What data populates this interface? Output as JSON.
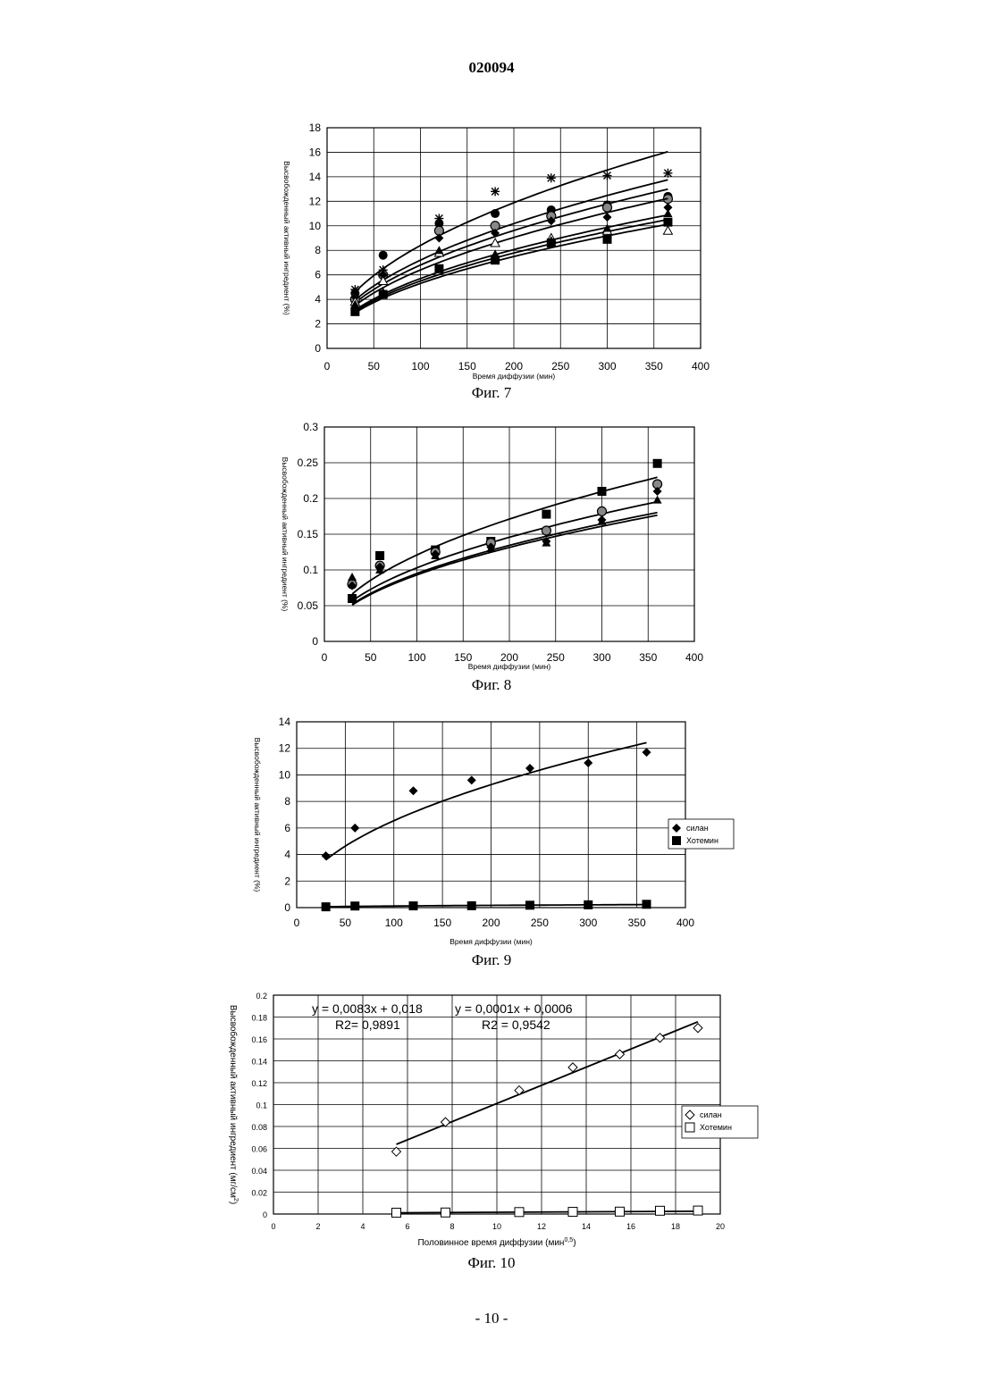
{
  "header": {
    "doc_number": "020094"
  },
  "footer": {
    "page_number": "- 10 -"
  },
  "chart_data": [
    {
      "caption": "Фиг. 7",
      "type": "scatter",
      "xlabel": "Время диффузии (мин)",
      "ylabel": "Высвобожденный активный ингредиент (%)",
      "xlim": [
        0,
        400
      ],
      "ylim": [
        0,
        18
      ],
      "xticks": [
        0,
        50,
        100,
        150,
        200,
        250,
        300,
        350,
        400
      ],
      "yticks": [
        0,
        2,
        4,
        6,
        8,
        10,
        12,
        14,
        16,
        18
      ],
      "grid": true,
      "series": [
        {
          "marker": "star",
          "x": [
            30,
            60,
            120,
            180,
            240,
            300,
            365
          ],
          "y": [
            4.8,
            6.4,
            10.6,
            12.8,
            13.9,
            14.1,
            14.3
          ],
          "fit": {
            "kind": "power",
            "a": 0.84,
            "b": 0.5
          }
        },
        {
          "marker": "circle",
          "x": [
            30,
            60,
            120,
            180,
            240,
            300,
            365
          ],
          "y": [
            4.5,
            7.6,
            10.2,
            11.0,
            11.3,
            11.7,
            12.4
          ],
          "fit": {
            "kind": "power",
            "a": 0.72,
            "b": 0.5
          }
        },
        {
          "marker": "circle-gray",
          "x": [
            30,
            60,
            120,
            180,
            240,
            300,
            365
          ],
          "y": [
            4.0,
            6.0,
            9.6,
            10.0,
            10.8,
            11.5,
            12.2
          ],
          "fit": {
            "kind": "power",
            "a": 0.68,
            "b": 0.5
          }
        },
        {
          "marker": "diamond",
          "x": [
            30,
            60,
            120,
            180,
            240,
            300,
            365
          ],
          "y": [
            4.2,
            6.0,
            9.0,
            9.4,
            10.4,
            10.7,
            11.5
          ],
          "fit": {
            "kind": "power",
            "a": 0.64,
            "b": 0.5
          }
        },
        {
          "marker": "triangle-open",
          "x": [
            30,
            60,
            120,
            180,
            240,
            300,
            365
          ],
          "y": [
            3.8,
            5.5,
            7.8,
            8.6,
            9.0,
            9.6,
            9.6
          ],
          "fit": {
            "kind": "power",
            "a": 0.55,
            "b": 0.5
          }
        },
        {
          "marker": "triangle",
          "x": [
            30,
            60,
            120,
            180,
            240,
            300,
            365
          ],
          "y": [
            3.6,
            4.6,
            8.0,
            7.7,
            8.8,
            9.8,
            11.0
          ],
          "fit": {
            "kind": "power",
            "a": 0.57,
            "b": 0.5
          }
        },
        {
          "marker": "square",
          "x": [
            30,
            60,
            120,
            180,
            240,
            300,
            365
          ],
          "y": [
            3.0,
            4.4,
            6.5,
            7.2,
            8.6,
            8.9,
            10.3
          ],
          "fit": {
            "kind": "power",
            "a": 0.53,
            "b": 0.5
          }
        }
      ]
    },
    {
      "caption": "Фиг. 8",
      "type": "scatter",
      "xlabel": "Время диффузии (мин)",
      "ylabel": "Высвобожденный активный ингредиент (%)",
      "xlim": [
        0,
        400
      ],
      "ylim": [
        0,
        0.3
      ],
      "xticks": [
        0,
        50,
        100,
        150,
        200,
        250,
        300,
        350,
        400
      ],
      "yticks": [
        0,
        0.05,
        0.1,
        0.15,
        0.2,
        0.25,
        0.3
      ],
      "ytick_labels": [
        "0",
        "0.05",
        "0.1",
        "0.15",
        "0.2",
        "0.25",
        "0.3"
      ],
      "grid": true,
      "series": [
        {
          "marker": "square",
          "x": [
            30,
            60,
            120,
            180,
            240,
            300,
            360
          ],
          "y": [
            0.06,
            0.12,
            0.128,
            0.14,
            0.178,
            0.21,
            0.249
          ],
          "fit": {
            "kind": "power",
            "a": 0.0121,
            "b": 0.5
          }
        },
        {
          "marker": "circle-gray",
          "x": [
            30,
            60,
            120,
            180,
            240,
            300,
            360
          ],
          "y": [
            0.08,
            0.106,
            0.125,
            0.138,
            0.155,
            0.182,
            0.22
          ],
          "fit": {
            "kind": "power",
            "a": 0.0103,
            "b": 0.5
          }
        },
        {
          "marker": "diamond",
          "x": [
            30,
            60,
            120,
            180,
            240,
            300,
            360
          ],
          "y": [
            0.078,
            0.104,
            0.122,
            0.132,
            0.14,
            0.17,
            0.21
          ],
          "fit": {
            "kind": "power",
            "a": 0.0093,
            "b": 0.5
          }
        },
        {
          "marker": "triangle",
          "x": [
            30,
            60,
            120,
            180,
            240,
            300,
            360
          ],
          "y": [
            0.09,
            0.1,
            0.12,
            0.13,
            0.138,
            0.168,
            0.198
          ],
          "fit": {
            "kind": "power",
            "a": 0.0095,
            "b": 0.5
          }
        }
      ]
    },
    {
      "caption": "Фиг. 9",
      "type": "scatter",
      "xlabel": "Время диффузии (мин)",
      "ylabel": "Высвобожденный активный ингредиент (%)",
      "xlim": [
        0,
        400
      ],
      "ylim": [
        0,
        14
      ],
      "xticks": [
        0,
        50,
        100,
        150,
        200,
        250,
        300,
        350,
        400
      ],
      "yticks": [
        0,
        2,
        4,
        6,
        8,
        10,
        12,
        14
      ],
      "grid": true,
      "legend_position": "right",
      "series": [
        {
          "name": "силан",
          "marker": "diamond",
          "x": [
            30,
            60,
            120,
            180,
            240,
            300,
            360
          ],
          "y": [
            3.9,
            6.0,
            8.8,
            9.6,
            10.5,
            10.9,
            11.7
          ],
          "fit": {
            "kind": "power",
            "a": 0.655,
            "b": 0.5
          }
        },
        {
          "name": "Хотемин",
          "marker": "square",
          "x": [
            30,
            60,
            120,
            180,
            240,
            300,
            360
          ],
          "y": [
            0.06,
            0.12,
            0.13,
            0.14,
            0.18,
            0.21,
            0.25
          ],
          "fit": {
            "kind": "power",
            "a": 0.012,
            "b": 0.5
          }
        }
      ]
    },
    {
      "caption": "Фиг. 10",
      "type": "scatter",
      "xlabel": "Половинное время диффузии (мин",
      "xlabel_sup": "0,5",
      "xlabel_end": ")",
      "ylabel": "Высвобожденный активный ингредиент (мг/см",
      "ylabel_sup": "2",
      "ylabel_end": ")",
      "xlim": [
        0,
        20
      ],
      "ylim": [
        0,
        0.2
      ],
      "xticks": [
        0,
        2,
        4,
        6,
        8,
        10,
        12,
        14,
        16,
        18,
        20
      ],
      "yticks": [
        0,
        0.02,
        0.04,
        0.06,
        0.08,
        0.1,
        0.12,
        0.14,
        0.16,
        0.18,
        0.2
      ],
      "grid": true,
      "legend_position": "right",
      "annotations": [
        {
          "line1": "y = 0,0083x + 0,018",
          "line2": "R2= 0,9891"
        },
        {
          "line1": "y = 0,0001x + 0,0006",
          "line2": "R2 = 0,9542"
        }
      ],
      "series": [
        {
          "name": "силан",
          "marker": "diamond-open",
          "x": [
            5.5,
            7.7,
            11.0,
            13.4,
            15.5,
            17.3,
            19.0
          ],
          "y": [
            0.057,
            0.084,
            0.113,
            0.134,
            0.146,
            0.161,
            0.17
          ],
          "fit": {
            "kind": "linear",
            "a": 0.0083,
            "b": 0.018,
            "x0": 5.5,
            "x1": 19.0
          }
        },
        {
          "name": "Хотемин",
          "marker": "square-open",
          "x": [
            5.5,
            7.7,
            11.0,
            13.4,
            15.5,
            17.3,
            19.0
          ],
          "y": [
            0.0012,
            0.0014,
            0.0018,
            0.002,
            0.0022,
            0.003,
            0.0032
          ],
          "fit": {
            "kind": "linear",
            "a": 0.0001,
            "b": 0.0006,
            "x0": 5.5,
            "x1": 19.0
          }
        }
      ]
    }
  ]
}
